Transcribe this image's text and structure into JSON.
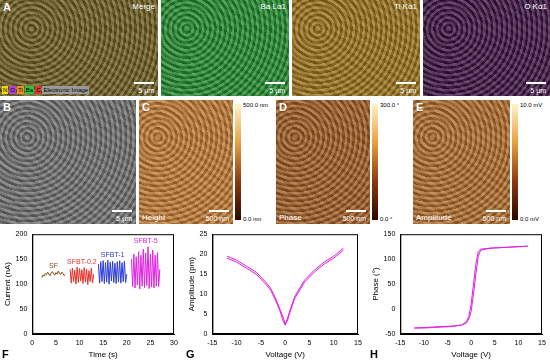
{
  "image_panels": [
    {
      "label": "A",
      "title": "Merge",
      "color": "#6b5a1e",
      "scale_bar": "5 μm",
      "element_key": [
        {
          "text": "N",
          "color": "#e8e000"
        },
        {
          "text": "O",
          "color": "#b040d0"
        },
        {
          "text": "Ti",
          "color": "#e89020"
        },
        {
          "text": "Ba",
          "color": "#30c040"
        },
        {
          "text": "C",
          "color": "#e03030"
        },
        {
          "text": "Electronic Image",
          "color": "#999999"
        }
      ]
    },
    {
      "title": "Ba Lα1",
      "color": "#1f8a2a",
      "scale_bar": "5 μm"
    },
    {
      "title": "Ti Kα1",
      "color": "#9a7018",
      "scale_bar": "5 μm"
    },
    {
      "title": "O Kα1",
      "color": "#3a1040",
      "scale_bar": "5 μm"
    },
    {
      "label": "B",
      "color": "#6d6d6d",
      "scale_bar": "5 μm"
    },
    {
      "label": "C",
      "title": "Height",
      "color": "#c07830",
      "scale_bar": "500 nm",
      "colorbar_labels": [
        "500.0 nm",
        "0.0 nm"
      ]
    },
    {
      "label": "D",
      "title": "Phase",
      "color": "#a05a20",
      "scale_bar": "500 nm",
      "colorbar_labels": [
        "300.0 °",
        "0.0 °"
      ]
    },
    {
      "label": "E",
      "title": "Amplitude",
      "color": "#b06a28",
      "scale_bar": "500 nm",
      "colorbar_labels": [
        "10.0 mV",
        "0.0 mV"
      ]
    }
  ],
  "chart_data": [
    {
      "type": "line",
      "label": "F",
      "x_label": "Time (s)",
      "y_label": "Current (nA)",
      "xlim": [
        0,
        30
      ],
      "xticks": [
        0,
        5,
        10,
        15,
        20,
        25,
        30
      ],
      "ylim": [
        0,
        200
      ],
      "yticks": [
        0,
        50,
        100,
        150,
        200
      ],
      "grid": false,
      "series": [
        {
          "name": "SF",
          "color": "#8b4513",
          "x": [
            2,
            2.25,
            2.5,
            2.75,
            3,
            3.25,
            3.5,
            3.75,
            4,
            4.25,
            4.5,
            4.75,
            5,
            5.25,
            5.5,
            5.75,
            6,
            6.25,
            6.5,
            6.75,
            7
          ],
          "values": [
            113,
            118,
            116,
            121,
            119,
            124,
            120,
            117,
            122,
            125,
            121,
            118,
            123,
            120,
            126,
            122,
            119,
            124,
            121,
            117,
            119
          ]
        },
        {
          "name": "SFBT-0.2",
          "color": "#e8302a",
          "x": [
            8,
            8.25,
            8.5,
            8.75,
            9,
            9.25,
            9.5,
            9.75,
            10,
            10.25,
            10.5,
            10.75,
            11,
            11.25,
            11.5,
            11.75,
            12,
            12.25,
            12.5,
            12.75,
            13
          ],
          "values": [
            130,
            102,
            132,
            105,
            128,
            100,
            134,
            103,
            131,
            106,
            129,
            101,
            133,
            104,
            130,
            99,
            127,
            105,
            132,
            102,
            120
          ]
        },
        {
          "name": "SFBT-1",
          "color": "#2b3bd6",
          "x": [
            14,
            14.25,
            14.5,
            14.75,
            15,
            15.25,
            15.5,
            15.75,
            16,
            16.25,
            16.5,
            16.75,
            17,
            17.25,
            17.5,
            17.75,
            18,
            18.25,
            18.5,
            18.75,
            19,
            19.25,
            19.5,
            19.75,
            20
          ],
          "values": [
            140,
            102,
            145,
            105,
            147,
            101,
            143,
            104,
            148,
            100,
            144,
            106,
            146,
            103,
            142,
            101,
            145,
            104,
            147,
            102,
            143,
            105,
            146,
            103,
            120
          ]
        },
        {
          "name": "SFBT-5",
          "color": "#e020e0",
          "x": [
            21,
            21.25,
            21.5,
            21.75,
            22,
            22.25,
            22.5,
            22.75,
            23,
            23.25,
            23.5,
            23.75,
            24,
            24.25,
            24.5,
            24.75,
            25,
            25.25,
            25.5,
            25.75,
            26,
            26.25,
            26.5,
            26.75,
            27
          ],
          "values": [
            150,
            95,
            160,
            92,
            155,
            98,
            165,
            90,
            158,
            96,
            170,
            93,
            162,
            97,
            175,
            91,
            160,
            94,
            168,
            92,
            158,
            96,
            163,
            95,
            130
          ]
        }
      ]
    },
    {
      "type": "line",
      "label": "G",
      "x_label": "Voltage (V)",
      "y_label": "Amplitude (pm)",
      "xlim": [
        -15,
        15
      ],
      "xticks": [
        -15,
        -10,
        -5,
        0,
        5,
        10,
        15
      ],
      "ylim": [
        0,
        25
      ],
      "yticks": [
        0,
        5,
        10,
        15,
        20,
        25
      ],
      "grid": false,
      "series": [
        {
          "color": "#e020e0",
          "x": [
            -12,
            -10,
            -8,
            -6,
            -4,
            -3,
            -2,
            -1,
            -0.5,
            0,
            0.5,
            1,
            2,
            3,
            4,
            6,
            8,
            10,
            12
          ],
          "values": [
            19.5,
            18.5,
            17,
            15.5,
            13,
            11.5,
            9,
            6,
            4.5,
            2.5,
            4,
            6,
            9.5,
            11.5,
            13.5,
            16,
            18,
            19.5,
            21.5
          ]
        },
        {
          "color": "#e020e0",
          "x": [
            12,
            10,
            8,
            6,
            4,
            3,
            2,
            1,
            0.5,
            0,
            -0.5,
            -1,
            -2,
            -3,
            -4,
            -6,
            -8,
            -10,
            -12
          ],
          "values": [
            21,
            19,
            17.5,
            15.5,
            13,
            11,
            9,
            5.5,
            3.5,
            2.2,
            3.5,
            5.5,
            8.5,
            11,
            12.5,
            15,
            16.5,
            18,
            19
          ]
        }
      ]
    },
    {
      "type": "line",
      "label": "H",
      "x_label": "Voltage (V)",
      "y_label": "Phase (°)",
      "xlim": [
        -15,
        15
      ],
      "xticks": [
        -15,
        -10,
        -5,
        0,
        5,
        10,
        15
      ],
      "ylim": [
        -50,
        150
      ],
      "yticks": [
        -50,
        0,
        50,
        100,
        150
      ],
      "grid": false,
      "series": [
        {
          "color": "#e020e0",
          "x": [
            -12,
            -10,
            -8,
            -6,
            -4,
            -2,
            -1,
            -0.5,
            0,
            0.5,
            1,
            1.5,
            2,
            4,
            6,
            8,
            10,
            12
          ],
          "values": [
            -38,
            -38,
            -37,
            -36,
            -35,
            -32,
            -25,
            -15,
            10,
            50,
            90,
            115,
            120,
            122,
            123,
            124,
            125,
            126
          ]
        },
        {
          "color": "#e020e0",
          "x": [
            12,
            10,
            8,
            6,
            4,
            2,
            1.5,
            1,
            0.5,
            0,
            -0.5,
            -1,
            -2,
            -4,
            -6,
            -8,
            -10,
            -12
          ],
          "values": [
            126,
            125,
            124,
            123,
            122,
            118,
            105,
            70,
            30,
            -5,
            -20,
            -28,
            -32,
            -34,
            -35,
            -36,
            -37,
            -38
          ]
        }
      ]
    }
  ]
}
